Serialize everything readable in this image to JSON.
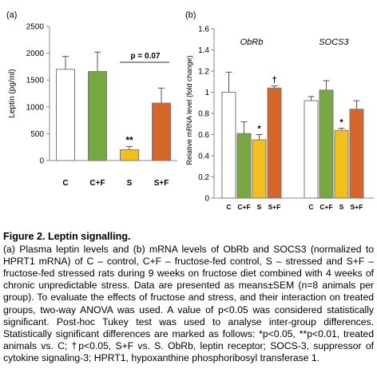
{
  "chart_data": [
    {
      "panel": "(a)",
      "type": "bar",
      "ylabel": "Leptin (pg/ml)",
      "ylim": [
        0,
        2500
      ],
      "yticks": [
        0,
        500,
        1000,
        1500,
        2000,
        2500
      ],
      "grid": false,
      "categories": [
        "C",
        "C+F",
        "S",
        "S+F"
      ],
      "values": [
        1700,
        1660,
        200,
        1070
      ],
      "errors": [
        240,
        360,
        60,
        280
      ],
      "colors": [
        "#ffffff",
        "#78a843",
        "#f2c01e",
        "#d6652a"
      ],
      "bar_labels": [
        "",
        "",
        "**",
        ""
      ],
      "annotation": "p = 0.07"
    },
    {
      "panel": "(b)",
      "type": "bar",
      "ylabel": "Relative mRNA level (fold change)",
      "ylim": [
        0,
        1.6
      ],
      "yticks": [
        "0",
        "0.2",
        "0.4",
        "0.6",
        "0.8",
        "1",
        "1.2",
        "1.4",
        "1.6"
      ],
      "grid": false,
      "groups": [
        {
          "name": "ObRb",
          "categories": [
            "C",
            "C+F",
            "S",
            "S+F"
          ],
          "values": [
            1.0,
            0.61,
            0.55,
            1.04
          ],
          "errors": [
            0.19,
            0.11,
            0.05,
            0.02
          ],
          "bar_labels": [
            "",
            "",
            "*",
            "†"
          ]
        },
        {
          "name": "SOCS3",
          "categories": [
            "C",
            "C+F",
            "S",
            "S+F"
          ],
          "values": [
            0.92,
            1.02,
            0.64,
            0.84
          ],
          "errors": [
            0.04,
            0.09,
            0.02,
            0.08
          ],
          "bar_labels": [
            "",
            "",
            "*",
            ""
          ]
        }
      ],
      "colors": [
        "#ffffff",
        "#78a843",
        "#f2c01e",
        "#d6652a"
      ]
    }
  ],
  "caption": {
    "title": "Figure 2. Leptin signalling.",
    "body": "(a) Plasma leptin levels and (b) mRNA levels of ObRb and SOCS3 (normalized to HPRT1 mRNA) of C – control, C+F – fructose-fed control, S – stressed and S+F – fructose-fed stressed rats during 9 weeks on fructose diet combined with 4 weeks of chronic unpredictable stress. Data are presented as means±SEM (n=8 animals per group). To evaluate the effects of fructose and stress, and their interaction on treated groups, two-way ANOVA was used. A value of p<0.05 was considered statistically significant. Post-hoc Tukey test was used to analyse inter-group differences. Statistically significant differences are marked as follows: *p<0.05, **p<0.01, treated animals vs. C; †p<0.05, S+F vs. S. ObRb, leptin receptor; SOCS-3, suppressor of cytokine signaling-3; HPRT1, hypoxanthine phosphoribosyl transferase 1."
  }
}
